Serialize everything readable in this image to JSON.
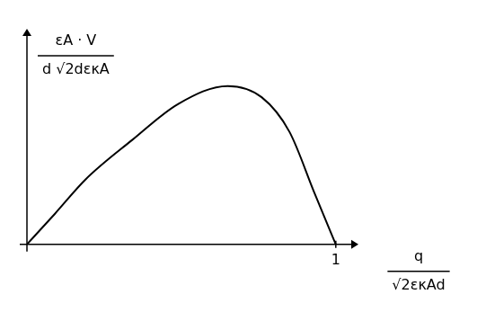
{
  "chart_data": {
    "type": "line",
    "ylabel": {
      "numerator": "εA · V",
      "denominator": "d √2dεκA"
    },
    "xlabel": {
      "numerator": "q",
      "denominator": "√2εκAd"
    },
    "x": [
      0,
      0.09,
      0.19,
      0.34,
      0.49,
      0.65,
      0.76,
      0.85,
      0.93,
      1
    ],
    "values": [
      0,
      0.073,
      0.156,
      0.25,
      0.337,
      0.38,
      0.353,
      0.27,
      0.125,
      0
    ],
    "color": "#000000",
    "xlim": [
      0,
      1.05
    ],
    "xticks": [
      1
    ],
    "ylim": [
      0,
      0.5
    ],
    "yticks": [],
    "grid": false,
    "tick_labels": "x"
  }
}
